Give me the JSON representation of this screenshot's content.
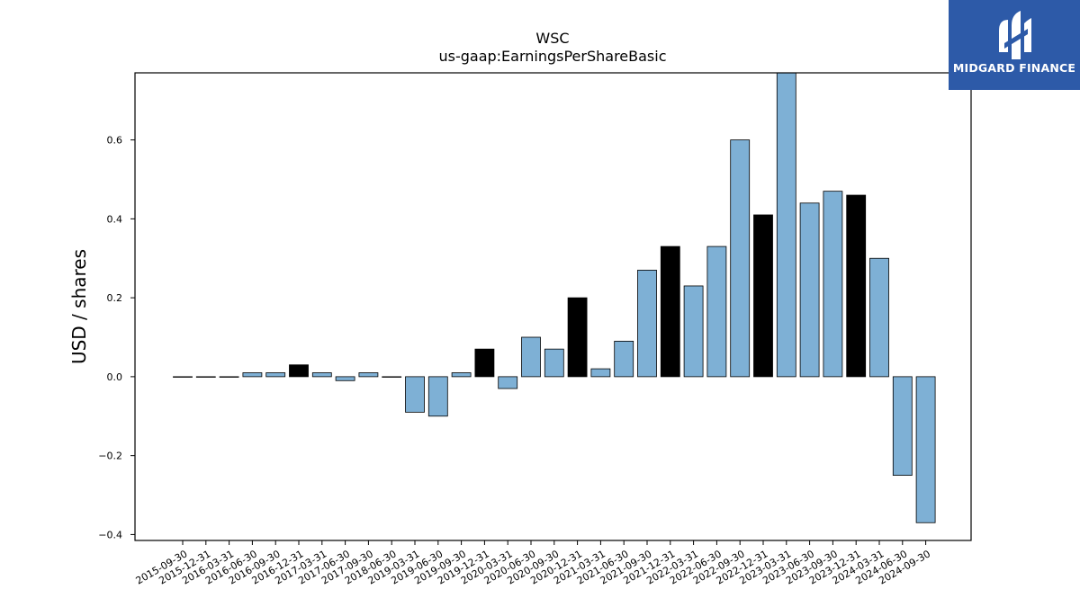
{
  "chart_data": {
    "type": "bar",
    "title": "WSC",
    "subtitle": "us-gaap:EarningsPerShareBasic",
    "ylabel": "USD / shares",
    "xlabel": "",
    "ylim": [
      -0.415,
      0.77
    ],
    "yticks": [
      -0.4,
      -0.2,
      0.0,
      0.2,
      0.4,
      0.6
    ],
    "ytick_labels": [
      "−0.4",
      "−0.2",
      "0.0",
      "0.2",
      "0.4",
      "0.6"
    ],
    "grid": false,
    "colors": {
      "default": "#7eb0d5",
      "highlight": "#000000",
      "edge": "#000000"
    },
    "categories": [
      "2015-09-30",
      "2015-12-31",
      "2016-03-31",
      "2016-06-30",
      "2016-09-30",
      "2016-12-31",
      "2017-03-31",
      "2017-06-30",
      "2017-09-30",
      "2018-06-30",
      "2019-03-31",
      "2019-06-30",
      "2019-09-30",
      "2019-12-31",
      "2020-03-31",
      "2020-06-30",
      "2020-09-30",
      "2020-12-31",
      "2021-03-31",
      "2021-06-30",
      "2021-09-30",
      "2021-12-31",
      "2022-03-31",
      "2022-06-30",
      "2022-09-30",
      "2022-12-31",
      "2023-03-31",
      "2023-06-30",
      "2023-09-30",
      "2023-12-31",
      "2024-03-31",
      "2024-06-30",
      "2024-09-30"
    ],
    "values": [
      0.0,
      0.0,
      0.0,
      0.01,
      0.01,
      0.03,
      0.01,
      -0.01,
      0.01,
      0.0,
      -0.09,
      -0.1,
      0.01,
      0.07,
      -0.03,
      0.1,
      0.07,
      0.2,
      0.02,
      0.09,
      0.27,
      0.33,
      0.23,
      0.33,
      0.6,
      0.41,
      0.77,
      0.44,
      0.47,
      0.46,
      0.3,
      -0.25,
      -0.37
    ],
    "highlight": [
      false,
      false,
      false,
      false,
      false,
      true,
      false,
      false,
      false,
      false,
      false,
      false,
      false,
      true,
      false,
      false,
      false,
      true,
      false,
      false,
      false,
      true,
      false,
      false,
      false,
      true,
      false,
      false,
      false,
      true,
      false,
      false,
      false
    ]
  },
  "logo": {
    "text": "MIDGARD FINANCE",
    "icon": "midgard-logo-icon"
  }
}
